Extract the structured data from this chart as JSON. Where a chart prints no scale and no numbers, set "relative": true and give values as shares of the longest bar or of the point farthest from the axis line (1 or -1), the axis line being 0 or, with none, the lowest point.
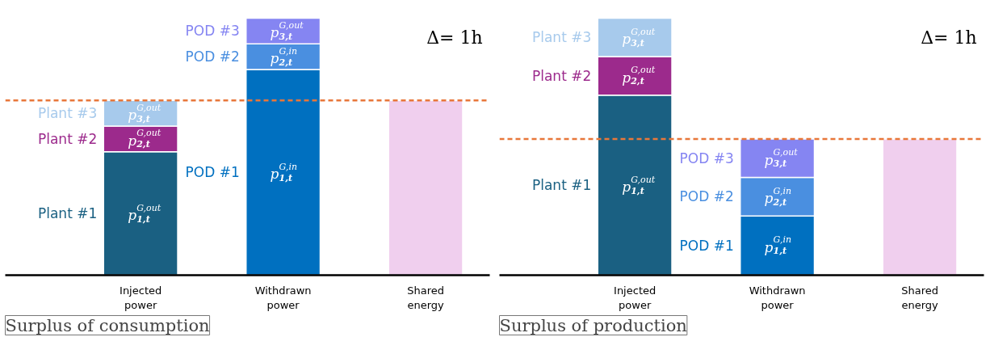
{
  "chart_data": [
    {
      "type": "bar",
      "stacked": true,
      "relative": true,
      "title": "Surplus of consumption",
      "tick_labels": "x",
      "categories": [
        "Injected power",
        "Withdrawn power",
        "Shared energy"
      ],
      "series": [
        {
          "name": "Plant #1",
          "color": "#1a6082",
          "values": [
            0.48,
            null,
            null
          ]
        },
        {
          "name": "Plant #2",
          "color": "#9c2a8c",
          "values": [
            0.1,
            null,
            null
          ]
        },
        {
          "name": "Plant #3",
          "color": "#a7caec",
          "values": [
            0.1,
            null,
            null
          ]
        },
        {
          "name": "POD #1",
          "color": "#0070c0",
          "values": [
            null,
            0.8,
            null
          ]
        },
        {
          "name": "POD #2",
          "color": "#4a8fe0",
          "values": [
            null,
            0.1,
            null
          ]
        },
        {
          "name": "POD #3",
          "color": "#8585f2",
          "values": [
            null,
            0.1,
            null
          ]
        },
        {
          "color": "#f0cfee",
          "values": [
            null,
            null,
            0.68
          ]
        }
      ],
      "annotations": [
        "Δ= 1h",
        "p$^{G,out}$$_{1,t}$",
        "p$^{G,out}$$_{2,t}$",
        "p$^{G,out}$$_{3,t}$",
        "p$^{G,in}$$_{1,t}$",
        "p$^{G,in}$$_{2,t}$",
        "p$^{G,out}$$_{3,t}$"
      ],
      "ref_lines": [
        {
          "axis": "y",
          "value": 0.68,
          "color": "#e8773a",
          "line_style": "dashed"
        }
      ]
    },
    {
      "type": "bar",
      "stacked": true,
      "relative": true,
      "title": "Surplus of production",
      "tick_labels": "x",
      "categories": [
        "Injected power",
        "Withdrawn power",
        "Shared energy"
      ],
      "series": [
        {
          "name": "Plant #1",
          "color": "#1a6082",
          "values": [
            0.7,
            null,
            null
          ]
        },
        {
          "name": "Plant #2",
          "color": "#9c2a8c",
          "values": [
            0.15,
            null,
            null
          ]
        },
        {
          "name": "Plant #3",
          "color": "#a7caec",
          "values": [
            0.15,
            null,
            null
          ]
        },
        {
          "name": "POD #1",
          "color": "#0070c0",
          "values": [
            null,
            0.23,
            null
          ]
        },
        {
          "name": "POD #2",
          "color": "#4a8fe0",
          "values": [
            null,
            0.15,
            null
          ]
        },
        {
          "name": "POD #3",
          "color": "#8585f2",
          "values": [
            null,
            0.15,
            null
          ]
        },
        {
          "color": "#f0cfee",
          "values": [
            null,
            null,
            0.53
          ]
        }
      ],
      "annotations": [
        "Δ= 1h",
        "p$^{G,out}$$_{1,t}$",
        "p$^{G,out}$$_{2,t}$",
        "p$^{G,out}$$_{3,t}$",
        "p$^{G,in}$$_{1,t}$",
        "p$^{G,in}$$_{2,t}$",
        "p$^{G,out}$$_{3,t}$"
      ],
      "ref_lines": [
        {
          "axis": "y",
          "value": 0.53,
          "color": "#e8773a",
          "line_style": "dashed"
        }
      ]
    }
  ]
}
